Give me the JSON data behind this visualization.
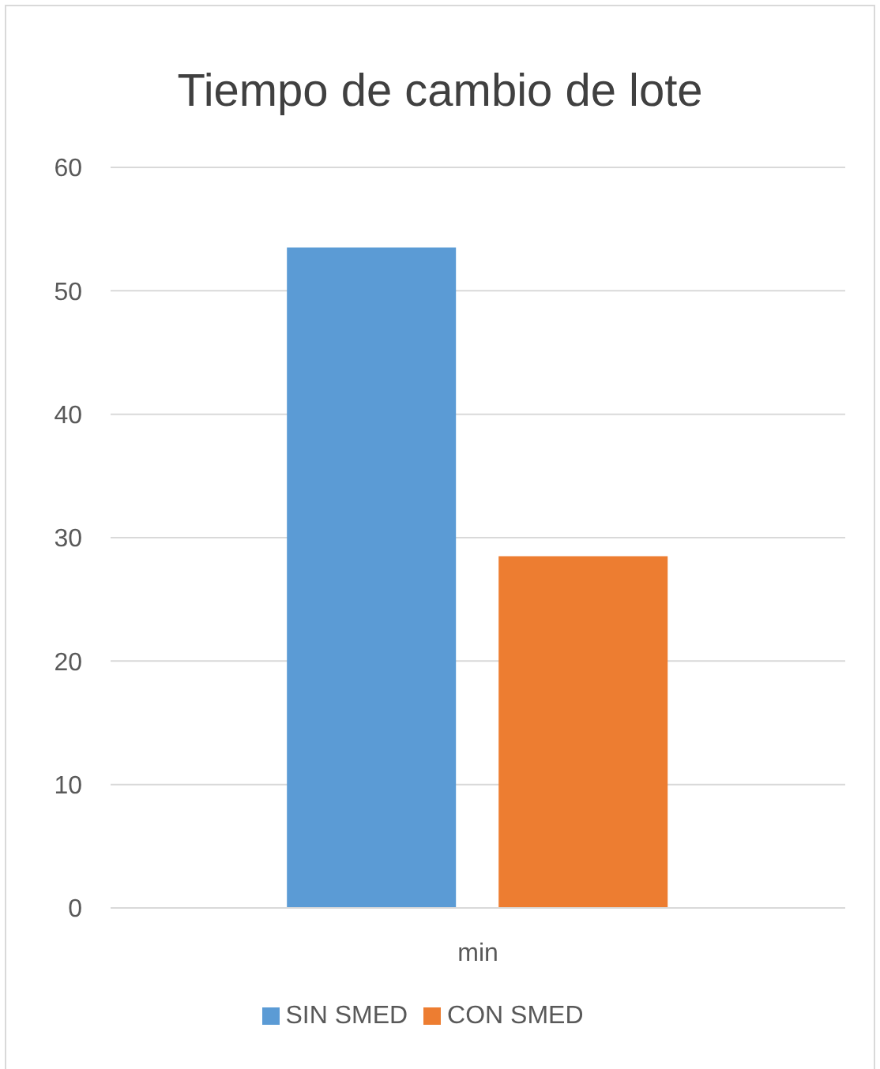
{
  "chart_data": {
    "type": "bar",
    "title": "Tiempo de cambio de lote",
    "categories": [
      "min"
    ],
    "series": [
      {
        "name": "SIN SMED",
        "color": "#5b9bd5",
        "values": [
          53.5
        ]
      },
      {
        "name": "CON SMED",
        "color": "#ed7d31",
        "values": [
          28.5
        ]
      }
    ],
    "ylim": [
      0,
      60
    ],
    "yticks": [
      0,
      10,
      20,
      30,
      40,
      50,
      60
    ],
    "grid": "y",
    "legend": "bottom"
  }
}
